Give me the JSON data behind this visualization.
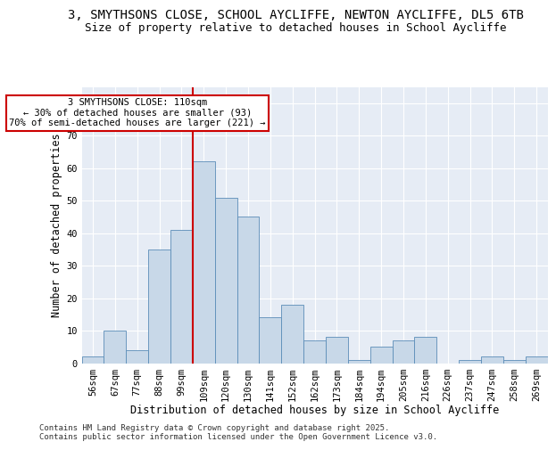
{
  "title_line1": "3, SMYTHSONS CLOSE, SCHOOL AYCLIFFE, NEWTON AYCLIFFE, DL5 6TB",
  "title_line2": "Size of property relative to detached houses in School Aycliffe",
  "xlabel": "Distribution of detached houses by size in School Aycliffe",
  "ylabel": "Number of detached properties",
  "categories": [
    "56sqm",
    "67sqm",
    "77sqm",
    "88sqm",
    "99sqm",
    "109sqm",
    "120sqm",
    "130sqm",
    "141sqm",
    "152sqm",
    "162sqm",
    "173sqm",
    "184sqm",
    "194sqm",
    "205sqm",
    "216sqm",
    "226sqm",
    "237sqm",
    "247sqm",
    "258sqm",
    "269sqm"
  ],
  "values": [
    2,
    10,
    4,
    35,
    41,
    62,
    51,
    45,
    14,
    18,
    7,
    8,
    1,
    5,
    7,
    8,
    0,
    1,
    2,
    1,
    2
  ],
  "bar_color": "#c8d8e8",
  "bar_edge_color": "#5b8db8",
  "vline_color": "#cc0000",
  "vline_index": 5,
  "annotation_text": "3 SMYTHSONS CLOSE: 110sqm\n← 30% of detached houses are smaller (93)\n70% of semi-detached houses are larger (221) →",
  "annotation_box_facecolor": "#ffffff",
  "annotation_box_edgecolor": "#cc0000",
  "ylim": [
    0,
    85
  ],
  "yticks": [
    0,
    10,
    20,
    30,
    40,
    50,
    60,
    70,
    80
  ],
  "background_color": "#e6ecf5",
  "footer_text": "Contains HM Land Registry data © Crown copyright and database right 2025.\nContains public sector information licensed under the Open Government Licence v3.0.",
  "title_fontsize": 10,
  "subtitle_fontsize": 9,
  "axis_label_fontsize": 8.5,
  "tick_fontsize": 7.5,
  "annotation_fontsize": 7.5,
  "footer_fontsize": 6.5
}
